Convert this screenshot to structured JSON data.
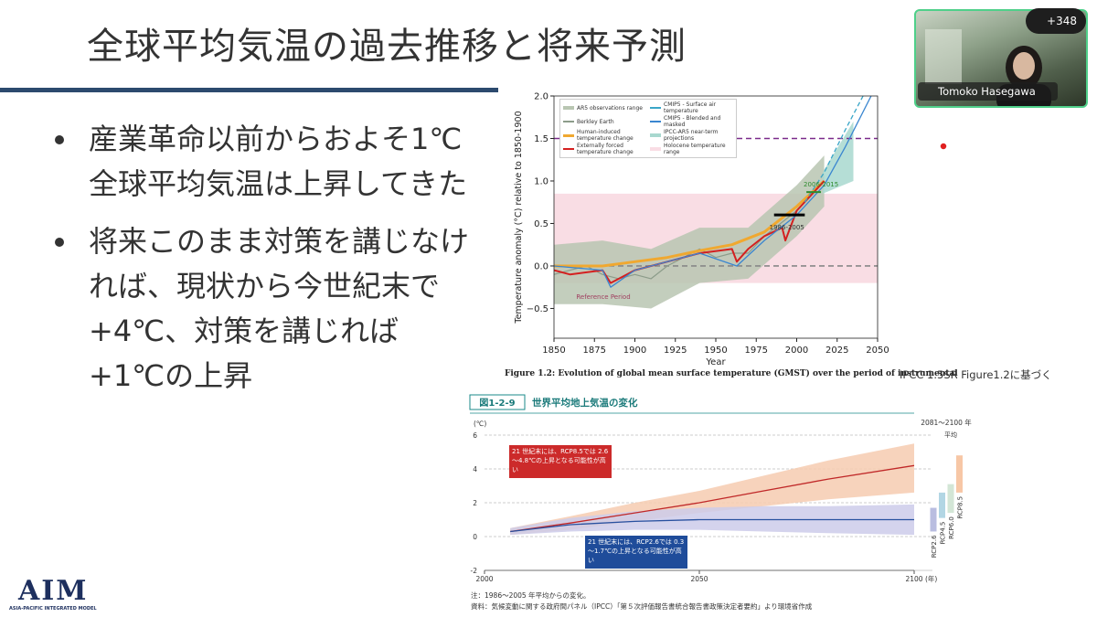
{
  "meeting": {
    "participants_badge": "+348",
    "speaker_name": "Tomoko Hasegawa"
  },
  "slide": {
    "title": "全球平均気温の過去推移と将来予測",
    "bullets": [
      "産業革命以前からおよそ1℃全球平均気温は上昇してきた",
      "将来このまま対策を講じなければ、現状から今世紀末で+4℃、対策を講じれば+1℃の上昇"
    ],
    "source": "IPCC 1.5SR Figure1.2に基づく",
    "logo": {
      "text": "AIM",
      "subtitle": "ASIA-PACIFIC INTEGRATED MODEL"
    }
  },
  "figure1": {
    "type": "line",
    "y_label": "Temperature anomaly (°C) relative to 1850-1900",
    "x_label": "Year",
    "caption": "Figure 1.2:   Evolution of global mean surface temperature (GMST) over the period of instrumental",
    "xlim": [
      1850,
      2050
    ],
    "xticks": [
      1850,
      1875,
      1900,
      1925,
      1950,
      1975,
      2000,
      2025,
      2050
    ],
    "ylim": [
      -0.85,
      2.0
    ],
    "yticks": [
      -0.5,
      0.0,
      0.5,
      1.0,
      1.5,
      2.0
    ],
    "ytick_labels": [
      "−0.5",
      "0.0",
      "0.5",
      "1.0",
      "1.5",
      "2.0"
    ],
    "reference_lines": [
      {
        "value": 0,
        "color": "#888888"
      },
      {
        "value": 1.5,
        "color": "#7b2a8a"
      }
    ],
    "reference_period": {
      "label": "1986-2005",
      "x": [
        1986,
        2005
      ],
      "value": 0.6
    },
    "recent_period": {
      "label": "2006-2015",
      "x": [
        2006,
        2015
      ],
      "value": 0.87
    },
    "reference_label": "Reference Period",
    "series": [
      {
        "name": "AR5 observations range",
        "kind": "band",
        "color": "#b9c6b2",
        "x": [
          1850,
          1880,
          1910,
          1940,
          1970,
          2000,
          2017
        ],
        "low": [
          -0.45,
          -0.45,
          -0.5,
          -0.2,
          -0.15,
          0.35,
          0.7
        ],
        "high": [
          0.25,
          0.3,
          0.2,
          0.45,
          0.45,
          0.95,
          1.3
        ]
      },
      {
        "name": "Berkley Earth",
        "kind": "line",
        "color": "#8c9c8a",
        "width": 1.2,
        "x": [
          1850,
          1860,
          1870,
          1880,
          1890,
          1900,
          1910,
          1920,
          1930,
          1940,
          1950,
          1960,
          1970,
          1980,
          1990,
          2000,
          2010,
          2017
        ],
        "values": [
          -0.1,
          -0.05,
          0.0,
          -0.1,
          -0.15,
          -0.1,
          -0.15,
          0.0,
          0.1,
          0.2,
          0.1,
          0.15,
          0.15,
          0.35,
          0.5,
          0.65,
          0.85,
          1.0
        ]
      },
      {
        "name": "Human-induced temperature change",
        "kind": "line",
        "color": "#f0a830",
        "width": 3,
        "x": [
          1850,
          1880,
          1900,
          1920,
          1940,
          1960,
          1980,
          2000,
          2017
        ],
        "values": [
          0.0,
          0.0,
          0.05,
          0.1,
          0.18,
          0.25,
          0.4,
          0.7,
          1.0
        ]
      },
      {
        "name": "Externally forced temperature change",
        "kind": "line",
        "color": "#d42020",
        "width": 2,
        "x": [
          1850,
          1860,
          1880,
          1885,
          1900,
          1920,
          1940,
          1960,
          1963,
          1970,
          1980,
          1991,
          1993,
          2000,
          2017
        ],
        "values": [
          -0.05,
          -0.1,
          -0.05,
          -0.2,
          -0.05,
          0.05,
          0.15,
          0.2,
          0.05,
          0.2,
          0.35,
          0.45,
          0.3,
          0.65,
          1.0
        ]
      },
      {
        "name": "CMIP5 - Surface air temperature",
        "kind": "line",
        "dash": true,
        "color": "#3aa6c8",
        "width": 1.3,
        "x": [
          2005,
          2017,
          2030,
          2041
        ],
        "values": [
          0.75,
          1.1,
          1.6,
          2.0
        ]
      },
      {
        "name": "CMIP5 - Blended and masked",
        "kind": "line",
        "color": "#3a86d0",
        "width": 1.3,
        "x": [
          1850,
          1880,
          1885,
          1900,
          1940,
          1963,
          1980,
          2000,
          2017,
          2030,
          2046
        ],
        "values": [
          0.0,
          -0.05,
          -0.25,
          -0.05,
          0.15,
          0.0,
          0.3,
          0.6,
          0.95,
          1.4,
          2.0
        ]
      },
      {
        "name": "IPCC-AR5 near-term projections",
        "kind": "band",
        "color": "#a8d8cf",
        "x": [
          2016,
          2035
        ],
        "low": [
          0.85,
          1.0
        ],
        "high": [
          1.1,
          1.7
        ]
      },
      {
        "name": "Holocene temperature range",
        "kind": "band",
        "color": "#f9dde4",
        "x": [
          1850,
          2050
        ],
        "low": [
          -0.2,
          -0.2
        ],
        "high": [
          0.85,
          0.85
        ]
      }
    ]
  },
  "figure2": {
    "type": "line",
    "figure_number": "図1-2-9",
    "title": "世界平均地上気温の変化",
    "y_unit": "(℃)",
    "x_unit": "(年)",
    "xlim": [
      2000,
      2100
    ],
    "xticks": [
      2000,
      2050,
      2100
    ],
    "ylim": [
      -2,
      6
    ],
    "yticks": [
      -2,
      0,
      2,
      4,
      6
    ],
    "x": [
      2006,
      2020,
      2035,
      2050,
      2065,
      2080,
      2100
    ],
    "series": [
      {
        "color": "#c02828",
        "band_color": "#f6cbb0",
        "values": [
          0.3,
          0.8,
          1.4,
          2.0,
          2.7,
          3.4,
          4.2
        ],
        "low": [
          0.1,
          0.4,
          0.9,
          1.4,
          1.8,
          2.2,
          2.6
        ],
        "high": [
          0.5,
          1.2,
          2.0,
          2.7,
          3.6,
          4.5,
          5.5
        ]
      },
      {
        "color": "#28509f",
        "band_color": "#cccbea",
        "values": [
          0.3,
          0.7,
          0.9,
          1.0,
          1.0,
          1.0,
          1.0
        ],
        "low": [
          0.1,
          0.3,
          0.4,
          0.4,
          0.3,
          0.2,
          0.1
        ],
        "high": [
          0.5,
          1.1,
          1.5,
          1.7,
          1.8,
          1.8,
          1.9
        ]
      }
    ],
    "callouts": [
      {
        "text": "21 世紀末には、RCP8.5では 2.6～4.8℃の上昇となる可能性が高い",
        "color": "#cc2a2a"
      },
      {
        "text": "21 世紀末には、RCP2.6では 0.3～1.7℃の上昇となる可能性が高い",
        "color": "#1f4c9a"
      }
    ],
    "period_label": "2081～2100 年",
    "period_sublabel": "平均",
    "period_ranges": [
      {
        "name": "RCP2.6",
        "low": 0.3,
        "high": 1.7,
        "color": "#b9bde0"
      },
      {
        "name": "RCP4.5",
        "low": 1.1,
        "high": 2.6,
        "color": "#b2d6e4"
      },
      {
        "name": "RCP6.0",
        "low": 1.4,
        "high": 3.1,
        "color": "#d3e6d6"
      },
      {
        "name": "RCP8.5",
        "low": 2.6,
        "high": 4.8,
        "color": "#f7c7a6"
      }
    ],
    "notes": [
      "注：1986～2005 年平均からの変化。",
      "資料：気候変動に関する政府間パネル（IPCC）「第５次評価報告書統合報告書政策決定者要約」より環境省作成"
    ]
  }
}
